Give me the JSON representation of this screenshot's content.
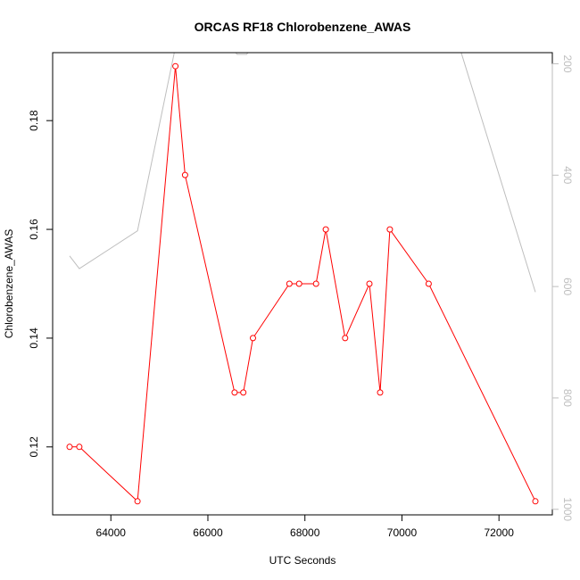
{
  "chart_data": {
    "type": "line",
    "title": "ORCAS RF18 Chlorobenzene_AWAS",
    "xlabel": "UTC Seconds",
    "ylabel": "Chlorobenzene_AWAS",
    "xlim": [
      62800,
      73100
    ],
    "ylim": [
      0.1075,
      0.1925
    ],
    "y2lim": [
      1010,
      180
    ],
    "xticks": [
      64000,
      66000,
      68000,
      70000,
      72000
    ],
    "yticks": [
      0.12,
      0.14,
      0.16,
      0.18
    ],
    "y2ticks": [
      200,
      400,
      600,
      800,
      1000
    ],
    "series": [
      {
        "axis": "left",
        "color": "#ff0000",
        "markers": true,
        "x": [
          63150,
          63350,
          64550,
          65330,
          65530,
          66550,
          66730,
          66930,
          67680,
          67880,
          68230,
          68430,
          68830,
          69330,
          69550,
          69750,
          70550,
          72750
        ],
        "y": [
          0.12,
          0.12,
          0.11,
          0.19,
          0.17,
          0.13,
          0.13,
          0.14,
          0.15,
          0.15,
          0.15,
          0.16,
          0.14,
          0.15,
          0.13,
          0.16,
          0.15,
          0.11
        ]
      },
      {
        "axis": "right",
        "color": "#bebebe",
        "markers": false,
        "x": [
          63150,
          63350,
          64550,
          65330,
          65450,
          66500,
          66600,
          66800,
          66900,
          68830,
          68850,
          68870,
          71150,
          72750
        ],
        "y": [
          545,
          568,
          500,
          170,
          80,
          170,
          183,
          183,
          170,
          160,
          175,
          160,
          160,
          610
        ]
      }
    ]
  }
}
